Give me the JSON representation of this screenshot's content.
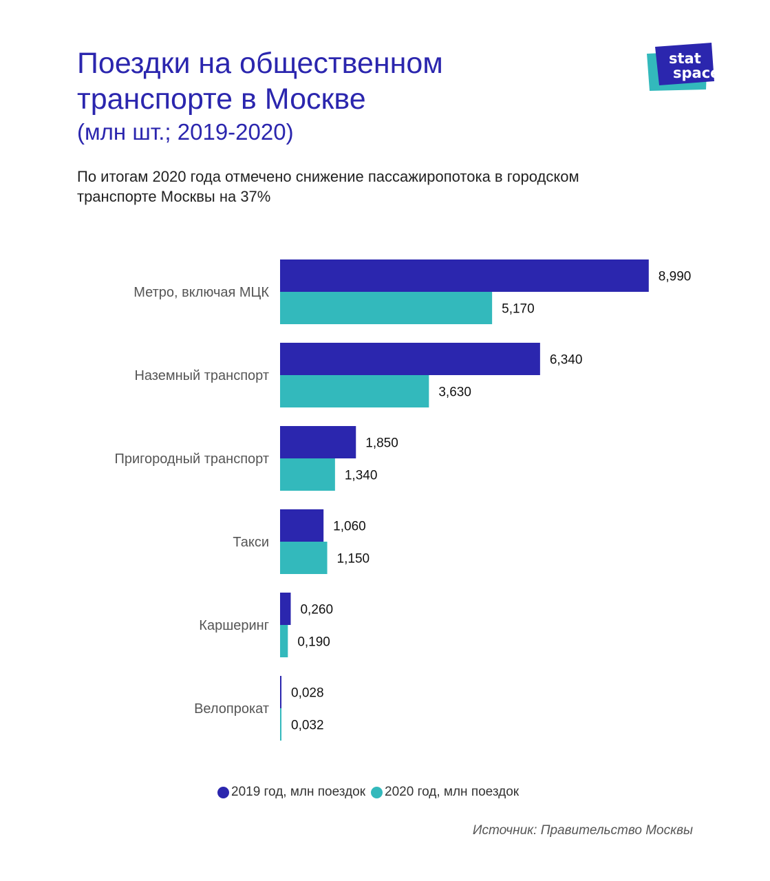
{
  "header": {
    "title_line1": "Поездки на общественном",
    "title_line2": "транспорте в Москве",
    "title_line3": "(млн шт.; 2019-2020)",
    "subtitle_line1": "По итогам 2020 года отмечено снижение пассажиропотока в городском",
    "subtitle_line2": "транспорте Москвы на 37%"
  },
  "logo": {
    "text_line1": "stat",
    "text_line2": "space",
    "color_front": "#2b26ae",
    "color_back": "#33b9bc"
  },
  "chart_data": {
    "type": "bar",
    "orientation": "horizontal",
    "categories": [
      "Метро, включая МЦК",
      "Наземный транспорт",
      "Пригородный транспорт",
      "Такси",
      "Каршеринг",
      "Велопрокат"
    ],
    "series": [
      {
        "name": "2019 год, млн поездок",
        "color": "#2b26ae",
        "values": [
          8.99,
          6.34,
          1.85,
          1.06,
          0.26,
          0.028
        ],
        "labels": [
          "8,990",
          "6,340",
          "1,850",
          "1,060",
          "0,260",
          "0,028"
        ]
      },
      {
        "name": "2020 год, млн поездок",
        "color": "#33b9bc",
        "values": [
          5.17,
          3.63,
          1.34,
          1.15,
          0.19,
          0.032
        ],
        "labels": [
          "5,170",
          "3,630",
          "1,340",
          "1,150",
          "0,190",
          "0,032"
        ]
      }
    ],
    "xlim": [
      0,
      9.0
    ],
    "grid": false,
    "legend_position": "bottom"
  },
  "legend": {
    "item_2019": "2019 год, млн поездок",
    "item_2020": "2020 год, млн поездок"
  },
  "footer": {
    "source": "Источник: Правительство Москвы"
  }
}
